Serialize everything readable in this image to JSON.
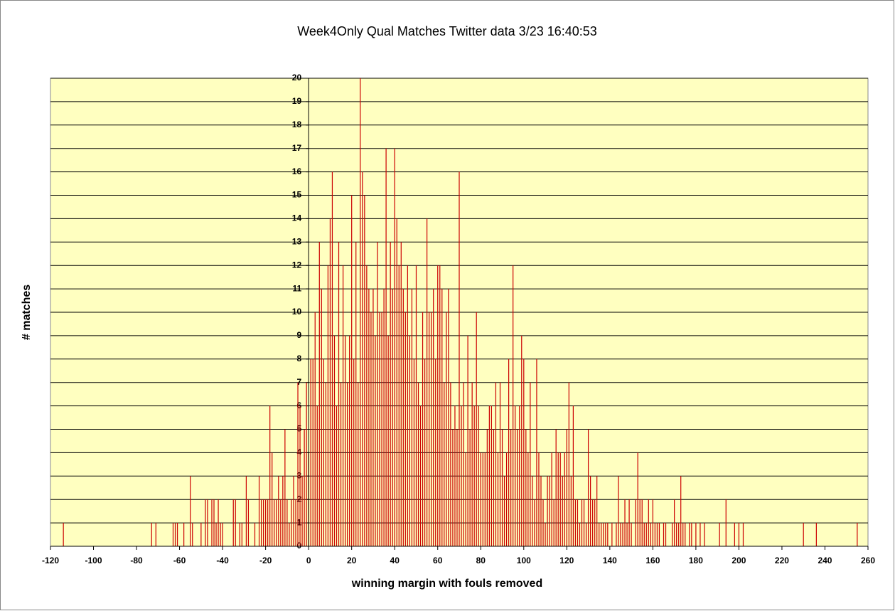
{
  "chart_data": {
    "type": "bar",
    "title": "Week4Only Qual Matches Twitter data 3/23 16:40:53",
    "xlabel": "winning margin with fouls removed",
    "ylabel": "# matches",
    "color": "#cc0000",
    "plot_background": "#ffffc0",
    "grid": true,
    "xlim": [
      -120,
      260
    ],
    "ylim": [
      0,
      20
    ],
    "xticks": [
      -120,
      -100,
      -80,
      -60,
      -40,
      -20,
      0,
      20,
      40,
      60,
      80,
      100,
      120,
      140,
      160,
      180,
      200,
      220,
      240,
      260
    ],
    "yticks": [
      0,
      1,
      2,
      3,
      4,
      5,
      6,
      7,
      8,
      9,
      10,
      11,
      12,
      13,
      14,
      15,
      16,
      17,
      18,
      19,
      20
    ],
    "x": [
      -114,
      -73,
      -71,
      -63,
      -62,
      -61,
      -58,
      -55,
      -54,
      -50,
      -48,
      -47,
      -45,
      -44,
      -43,
      -42,
      -41,
      -40,
      -35,
      -34,
      -32,
      -31,
      -29,
      -28,
      -25,
      -23,
      -22,
      -21,
      -20,
      -19,
      -18,
      -17,
      -16,
      -15,
      -14,
      -13,
      -12,
      -11,
      -10,
      -9,
      -8,
      -7,
      -6,
      -5,
      -4,
      -3,
      -2,
      -1,
      0,
      1,
      2,
      3,
      4,
      5,
      6,
      7,
      8,
      9,
      10,
      11,
      12,
      13,
      14,
      15,
      16,
      17,
      18,
      19,
      20,
      21,
      22,
      23,
      24,
      25,
      26,
      27,
      28,
      29,
      30,
      31,
      32,
      33,
      34,
      35,
      36,
      37,
      38,
      39,
      40,
      41,
      42,
      43,
      44,
      45,
      46,
      47,
      48,
      49,
      50,
      51,
      52,
      53,
      54,
      55,
      56,
      57,
      58,
      59,
      60,
      61,
      62,
      63,
      64,
      65,
      66,
      67,
      68,
      69,
      70,
      71,
      72,
      73,
      74,
      75,
      76,
      77,
      78,
      79,
      80,
      81,
      82,
      83,
      84,
      85,
      86,
      87,
      88,
      89,
      90,
      91,
      92,
      93,
      94,
      95,
      96,
      97,
      98,
      99,
      100,
      101,
      102,
      103,
      104,
      105,
      106,
      107,
      108,
      109,
      110,
      111,
      112,
      113,
      114,
      115,
      116,
      117,
      118,
      119,
      120,
      121,
      122,
      123,
      124,
      125,
      126,
      127,
      128,
      129,
      130,
      131,
      132,
      133,
      134,
      135,
      136,
      137,
      138,
      139,
      141,
      143,
      144,
      145,
      146,
      147,
      148,
      149,
      150,
      152,
      153,
      154,
      155,
      156,
      157,
      158,
      159,
      160,
      161,
      162,
      163,
      165,
      166,
      169,
      170,
      171,
      172,
      173,
      174,
      175,
      177,
      178,
      180,
      182,
      184,
      191,
      194,
      198,
      200,
      202,
      230,
      236,
      255
    ],
    "values": [
      1,
      1,
      1,
      1,
      1,
      1,
      1,
      3,
      1,
      1,
      2,
      2,
      2,
      2,
      1,
      2,
      1,
      1,
      2,
      2,
      1,
      1,
      3,
      2,
      1,
      3,
      2,
      2,
      2,
      2,
      6,
      4,
      2,
      2,
      3,
      2,
      3,
      5,
      2,
      1,
      2,
      3,
      2,
      7,
      6,
      3,
      5,
      7,
      4,
      8,
      8,
      10,
      6,
      13,
      11,
      8,
      7,
      12,
      14,
      16,
      9,
      6,
      13,
      7,
      12,
      9,
      7,
      9,
      15,
      8,
      13,
      7,
      20,
      16,
      15,
      12,
      11,
      10,
      11,
      9,
      13,
      10,
      10,
      11,
      17,
      9,
      13,
      11,
      17,
      14,
      12,
      13,
      11,
      10,
      12,
      9,
      11,
      8,
      12,
      7,
      6,
      10,
      8,
      14,
      10,
      10,
      11,
      8,
      12,
      12,
      11,
      7,
      10,
      11,
      7,
      5,
      6,
      5,
      16,
      6,
      7,
      4,
      9,
      5,
      7,
      6,
      10,
      6,
      4,
      4,
      4,
      5,
      6,
      6,
      5,
      7,
      4,
      7,
      5,
      3,
      4,
      8,
      5,
      12,
      6,
      5,
      6,
      9,
      8,
      5,
      4,
      7,
      3,
      2,
      8,
      4,
      3,
      2,
      1,
      3,
      3,
      4,
      2,
      5,
      4,
      4,
      3,
      4,
      5,
      7,
      3,
      6,
      2,
      2,
      1,
      2,
      2,
      1,
      5,
      3,
      2,
      2,
      3,
      1,
      1,
      1,
      1,
      1,
      1,
      1,
      3,
      1,
      1,
      2,
      1,
      2,
      1,
      2,
      4,
      2,
      2,
      1,
      1,
      2,
      1,
      2,
      1,
      1,
      1,
      1,
      1,
      1,
      2,
      1,
      1,
      3,
      1,
      1,
      1,
      1,
      1,
      1,
      1,
      1,
      2,
      1,
      1,
      1,
      1,
      1,
      1
    ]
  }
}
